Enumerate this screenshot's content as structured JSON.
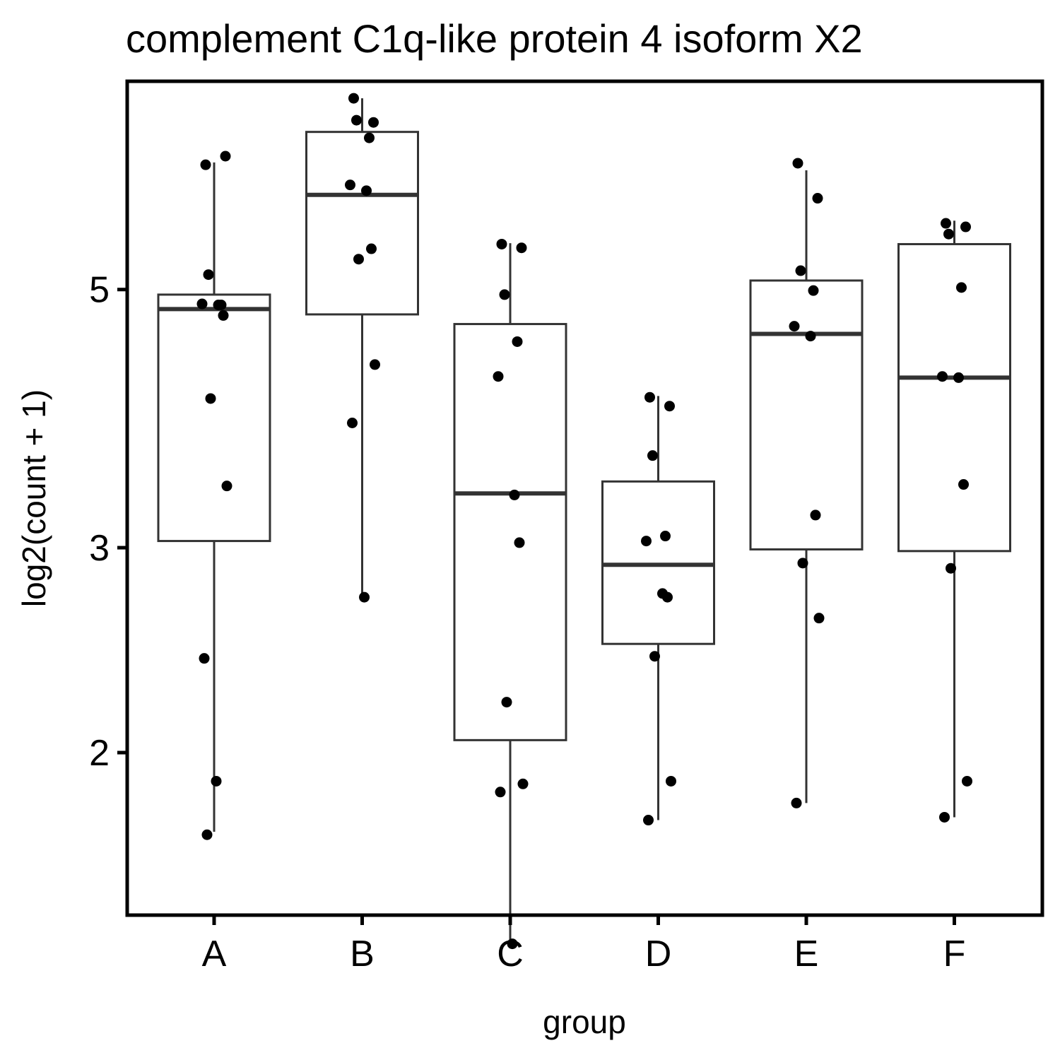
{
  "chart_data": {
    "type": "box",
    "title": "complement C1q-like protein 4 isoform X2",
    "xlabel": "group",
    "ylabel": "log2(count + 1)",
    "y_scale": "log2",
    "ylim": [
      1.45,
      7.55
    ],
    "y_ticks": [
      2,
      3,
      5
    ],
    "y_tick_labels": [
      "2",
      "3",
      "5"
    ],
    "categories": [
      "A",
      "B",
      "C",
      "D",
      "E",
      "F"
    ],
    "grid": false,
    "legend": "none",
    "boxes": [
      {
        "group": "A",
        "whisker_low": 1.71,
        "q1": 3.04,
        "median": 4.81,
        "q3": 4.95,
        "whisker_high": 6.43
      },
      {
        "group": "B",
        "whisker_low": 2.72,
        "q1": 4.76,
        "median": 6.03,
        "q3": 6.83,
        "whisker_high": 7.3
      },
      {
        "group": "C",
        "whisker_low": 1.37,
        "q1": 2.05,
        "median": 3.34,
        "q3": 4.67,
        "whisker_high": 5.48
      },
      {
        "group": "D",
        "whisker_low": 1.75,
        "q1": 2.48,
        "median": 2.9,
        "q3": 3.42,
        "whisker_high": 4.05
      },
      {
        "group": "E",
        "whisker_low": 1.81,
        "q1": 2.99,
        "median": 4.58,
        "q3": 5.09,
        "whisker_high": 6.33
      },
      {
        "group": "F",
        "whisker_low": 1.76,
        "q1": 2.98,
        "median": 4.2,
        "q3": 5.47,
        "whisker_high": 5.73
      }
    ],
    "points": [
      {
        "group": "A",
        "values": [
          6.4,
          6.51,
          5.15,
          4.85,
          4.86,
          4.85,
          4.75,
          4.03,
          3.39,
          2.41,
          1.89,
          1.7
        ]
      },
      {
        "group": "B",
        "values": [
          7.3,
          6.96,
          6.99,
          6.75,
          6.15,
          6.08,
          5.42,
          5.31,
          4.31,
          3.84,
          2.72
        ]
      },
      {
        "group": "C",
        "values": [
          5.47,
          5.43,
          4.95,
          4.51,
          4.21,
          3.33,
          3.03,
          2.21,
          1.88,
          1.85,
          1.37
        ]
      },
      {
        "group": "D",
        "values": [
          4.04,
          3.97,
          3.6,
          3.07,
          3.04,
          2.74,
          2.72,
          2.42,
          1.89,
          1.75
        ]
      },
      {
        "group": "E",
        "values": [
          6.42,
          5.99,
          5.19,
          4.99,
          4.65,
          4.56,
          3.2,
          2.91,
          2.61,
          1.81
        ]
      },
      {
        "group": "F",
        "values": [
          5.7,
          5.66,
          5.58,
          5.02,
          4.21,
          4.2,
          3.4,
          2.88,
          1.89,
          1.76
        ]
      }
    ]
  }
}
